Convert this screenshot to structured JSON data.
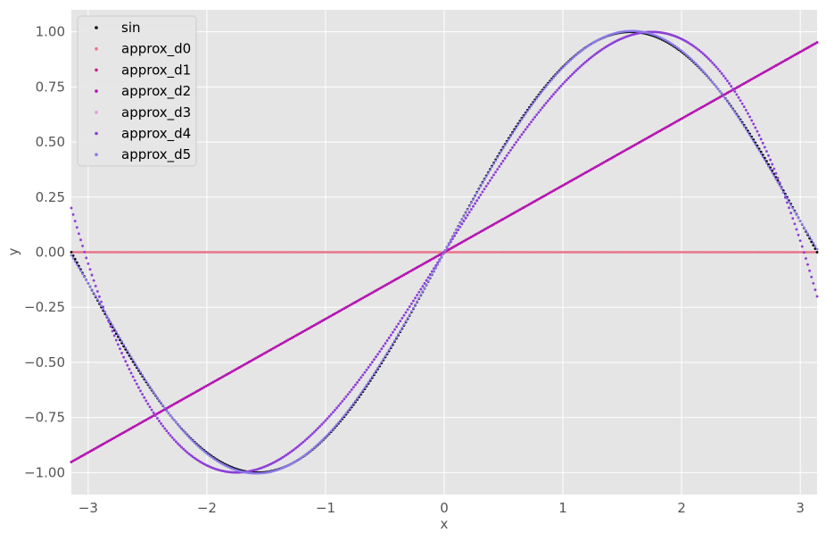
{
  "chart_data": {
    "type": "scatter",
    "title": "",
    "xlabel": "x",
    "ylabel": "y",
    "xlim": [
      -3.1416,
      3.1416
    ],
    "ylim": [
      -1.1,
      1.1
    ],
    "grid": true,
    "legend_position": "top-left",
    "x_ticks": [
      -3,
      -2,
      -1,
      0,
      1,
      2,
      3
    ],
    "x_tick_labels": [
      "−3",
      "−2",
      "−1",
      "0",
      "1",
      "2",
      "3"
    ],
    "y_ticks": [
      -1.0,
      -0.75,
      -0.5,
      -0.25,
      0.0,
      0.25,
      0.5,
      0.75,
      1.0
    ],
    "y_tick_labels": [
      "−1.00",
      "−0.75",
      "−0.50",
      "−0.25",
      "0.00",
      "0.25",
      "0.50",
      "0.75",
      "1.00"
    ],
    "series": [
      {
        "name": "sin",
        "color": "#000000",
        "coefficients": [
          0,
          1,
          0,
          -0.16667,
          0,
          0.008333,
          0,
          -0.000198,
          0,
          2.8e-06
        ],
        "samples": 400
      },
      {
        "name": "approx_d0",
        "color": "#e8748a",
        "coefficients": [
          0
        ],
        "samples": 400
      },
      {
        "name": "approx_d1",
        "color": "#c41e8f",
        "coefficients": [
          0,
          0.303
        ],
        "samples": 400
      },
      {
        "name": "approx_d2",
        "color": "#b414b4",
        "coefficients": [
          0,
          0.303,
          0
        ],
        "samples": 400
      },
      {
        "name": "approx_d3",
        "color": "#e89ad8",
        "coefficients": [
          0,
          0.857,
          0,
          -0.0933
        ],
        "samples": 400
      },
      {
        "name": "approx_d4",
        "color": "#8a3ed8",
        "coefficients": [
          0,
          0.857,
          0,
          -0.0933,
          0
        ],
        "samples": 400
      },
      {
        "name": "approx_d5",
        "color": "#8a7ae8",
        "coefficients": [
          0,
          0.9879,
          0,
          -0.1553,
          0,
          0.00564
        ],
        "samples": 400
      }
    ]
  }
}
